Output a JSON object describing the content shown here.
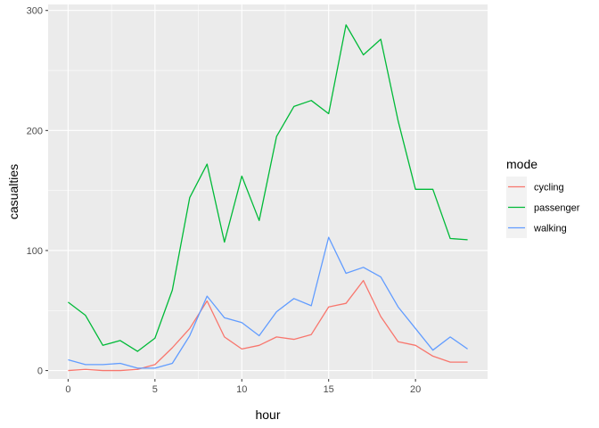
{
  "chart_data": {
    "type": "line",
    "xlabel": "hour",
    "ylabel": "casualties",
    "x": [
      0,
      1,
      2,
      3,
      4,
      5,
      6,
      7,
      8,
      9,
      10,
      11,
      12,
      13,
      14,
      15,
      16,
      17,
      18,
      19,
      20,
      21,
      22,
      23
    ],
    "xlim": [
      -1.15,
      24.15
    ],
    "ylim": [
      -7,
      305
    ],
    "xticks": [
      0,
      5,
      10,
      15,
      20
    ],
    "xtick_labels": [
      "0",
      "5",
      "10",
      "15",
      "20"
    ],
    "yticks": [
      0,
      100,
      200,
      300
    ],
    "ytick_labels": [
      "0",
      "100",
      "200",
      "300"
    ],
    "grid": true,
    "legend": {
      "title": "mode",
      "position": "right"
    },
    "series": [
      {
        "name": "cycling",
        "color": "#F8766D",
        "values": [
          0,
          1,
          0,
          0,
          1,
          5,
          19,
          35,
          58,
          28,
          18,
          21,
          28,
          26,
          30,
          53,
          56,
          75,
          45,
          24,
          21,
          12,
          7,
          7
        ]
      },
      {
        "name": "passenger",
        "color": "#00BA38",
        "values": [
          57,
          46,
          21,
          25,
          16,
          27,
          67,
          144,
          172,
          107,
          162,
          125,
          195,
          220,
          225,
          214,
          288,
          263,
          276,
          208,
          151,
          151,
          110,
          109
        ]
      },
      {
        "name": "walking",
        "color": "#619CFF",
        "values": [
          9,
          5,
          5,
          6,
          2,
          2,
          6,
          29,
          62,
          44,
          40,
          29,
          49,
          60,
          54,
          111,
          81,
          86,
          78,
          53,
          35,
          17,
          28,
          18
        ]
      }
    ]
  }
}
